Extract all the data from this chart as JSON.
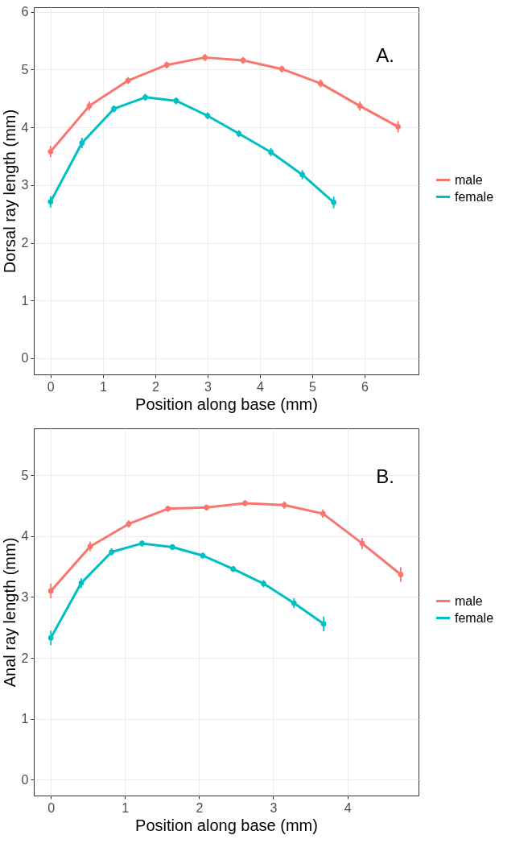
{
  "chart_data": [
    {
      "type": "line",
      "xlabel": "Position along base (mm)",
      "ylabel": "Dorsal ray length (mm)",
      "annotations": [
        "A."
      ],
      "xlim": [
        -0.32,
        7.03
      ],
      "ylim": [
        -0.28,
        6.08
      ],
      "xticks": [
        0,
        1,
        2,
        3,
        4,
        5,
        6
      ],
      "yticks": [
        0,
        1,
        2,
        3,
        4,
        5,
        6
      ],
      "grid": true,
      "legend": "right",
      "marker": "circle",
      "line_style": "solid",
      "series": [
        {
          "name": "male",
          "color": "#f8766d",
          "x": [
            0,
            0.74,
            1.48,
            2.22,
            2.95,
            3.68,
            4.42,
            5.16,
            5.91,
            6.64
          ],
          "values": [
            3.58,
            4.37,
            4.81,
            5.08,
            5.21,
            5.16,
            5.01,
            4.76,
            4.37,
            4.01
          ],
          "errors": [
            0.1,
            0.08,
            0.06,
            0.06,
            0.06,
            0.06,
            0.06,
            0.07,
            0.08,
            0.1
          ]
        },
        {
          "name": "female",
          "color": "#00bfc4",
          "x": [
            0,
            0.6,
            1.21,
            1.81,
            2.4,
            3.0,
            3.6,
            4.21,
            4.81,
            5.41
          ],
          "values": [
            2.71,
            3.73,
            4.32,
            4.52,
            4.46,
            4.2,
            3.89,
            3.57,
            3.18,
            2.7
          ],
          "errors": [
            0.1,
            0.09,
            0.06,
            0.06,
            0.06,
            0.06,
            0.06,
            0.07,
            0.08,
            0.1
          ]
        }
      ]
    },
    {
      "type": "line",
      "xlabel": "Position along base (mm)",
      "ylabel": "Anal ray length (mm)",
      "annotations": [
        "B."
      ],
      "xlim": [
        -0.23,
        4.96
      ],
      "ylim": [
        -0.26,
        5.77
      ],
      "xticks": [
        0,
        1,
        2,
        3,
        4
      ],
      "yticks": [
        0,
        1,
        2,
        3,
        4,
        5
      ],
      "grid": true,
      "legend": "right",
      "marker": "circle",
      "line_style": "solid",
      "series": [
        {
          "name": "male",
          "color": "#f8766d",
          "x": [
            0,
            0.53,
            1.05,
            1.58,
            2.1,
            2.62,
            3.15,
            3.67,
            4.2,
            4.72
          ],
          "values": [
            3.1,
            3.83,
            4.2,
            4.45,
            4.47,
            4.54,
            4.51,
            4.37,
            3.88,
            3.37
          ],
          "errors": [
            0.12,
            0.08,
            0.06,
            0.05,
            0.05,
            0.05,
            0.06,
            0.07,
            0.09,
            0.12
          ]
        },
        {
          "name": "female",
          "color": "#00bfc4",
          "x": [
            0,
            0.41,
            0.82,
            1.23,
            1.64,
            2.05,
            2.46,
            2.87,
            3.28,
            3.68
          ],
          "values": [
            2.33,
            3.23,
            3.74,
            3.88,
            3.82,
            3.68,
            3.46,
            3.22,
            2.9,
            2.56
          ],
          "errors": [
            0.12,
            0.08,
            0.06,
            0.05,
            0.05,
            0.05,
            0.05,
            0.06,
            0.08,
            0.12
          ]
        }
      ]
    }
  ]
}
